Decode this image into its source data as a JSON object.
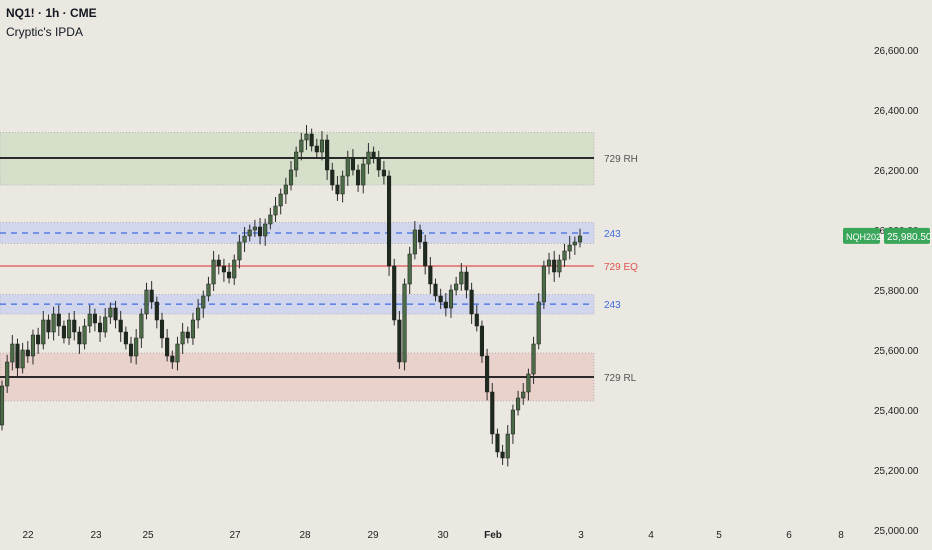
{
  "header": {
    "symbol_line": "NQ1! · 1h · CME",
    "indicator": "Cryptic's IPDA"
  },
  "colors": {
    "background": "#ebe8e2",
    "candle": "#4a6b46",
    "wick": "#2b2b2b",
    "high_zone": "#d6dfca",
    "low_zone": "#ead2cc",
    "blue_zone": "#d2d6ec",
    "range_line": "#2a2a2a",
    "eq_line": "#e0524f",
    "blue_line": "#3c6be0",
    "price_badge": "#3aa65a"
  },
  "chart_data": {
    "type": "candlestick",
    "y_axis": {
      "range": [
        24950,
        26700
      ],
      "ticks": [
        25000,
        25200,
        25400,
        25600,
        25800,
        26000,
        26200,
        26400,
        26600
      ],
      "tick_labels": [
        "25,000.00",
        "25,200.00",
        "25,400.00",
        "25,600.00",
        "25,800.00",
        "26,000.00",
        "26,200.00",
        "26,400.00",
        "26,600.00"
      ]
    },
    "x_axis": {
      "tick_labels": [
        "22",
        "23",
        "25",
        "27",
        "28",
        "29",
        "30",
        "Feb",
        "3",
        "4",
        "5",
        "6",
        "8"
      ],
      "bold_label": "Feb"
    },
    "zones": [
      {
        "name": "high-zone",
        "top": 26325,
        "bottom": 26150,
        "color": "#d6dfca"
      },
      {
        "name": "upper-blue-zone",
        "top": 26025,
        "bottom": 25955,
        "color": "#d2d6ec"
      },
      {
        "name": "lower-blue-zone",
        "top": 25785,
        "bottom": 25720,
        "color": "#d2d6ec"
      },
      {
        "name": "low-zone",
        "top": 25590,
        "bottom": 25430,
        "color": "#ead2cc"
      }
    ],
    "levels": [
      {
        "label": "729 RH",
        "value": 26240,
        "style": "solid",
        "color": "#2a2a2a"
      },
      {
        "label": "243",
        "value": 25990,
        "style": "dashed",
        "color": "#3c6be0"
      },
      {
        "label": "729 EQ",
        "value": 25880,
        "style": "solid",
        "color": "#e0524f"
      },
      {
        "label": "243",
        "value": 25753,
        "style": "dashed",
        "color": "#3c6be0"
      },
      {
        "label": "729 RL",
        "value": 25510,
        "style": "solid",
        "color": "#2a2a2a"
      }
    ],
    "current_price": {
      "symbol": "NQH2026",
      "value": 25980.5,
      "label": "25,980.50"
    },
    "series": [
      {
        "close": [
          25480,
          25560,
          25620,
          25540,
          25600,
          25580,
          25650,
          25620,
          25700,
          25660,
          25720,
          25680,
          25640,
          25700,
          25660,
          25620,
          25680,
          25720,
          25690,
          25660,
          25710,
          25740,
          25700,
          25660,
          25620,
          25580,
          25640,
          25720,
          25800,
          25760,
          25700,
          25640,
          25580,
          25560,
          25620,
          25660,
          25640,
          25700,
          25740,
          25780,
          25820,
          25900,
          25880,
          25860,
          25840,
          25900,
          25960,
          25980,
          26000,
          26010,
          25980,
          26020,
          26050,
          26080,
          26120,
          26150,
          26200,
          26260,
          26300,
          26320,
          26280,
          26260,
          26300,
          26200,
          26150,
          26120,
          26180,
          26240,
          26200,
          26150,
          26220,
          26260,
          26240,
          26200,
          26180,
          25880,
          25700,
          25560,
          25820,
          25920,
          26000,
          25960,
          25880,
          25820,
          25780,
          25760,
          25740,
          25800,
          25820,
          25860,
          25800,
          25720,
          25680,
          25580,
          25460,
          25320,
          25260,
          25240,
          25320,
          25400,
          25440,
          25460,
          25520,
          25620,
          25760,
          25880,
          25900,
          25860,
          25900,
          25930,
          25950,
          25960,
          25980
        ]
      }
    ]
  }
}
